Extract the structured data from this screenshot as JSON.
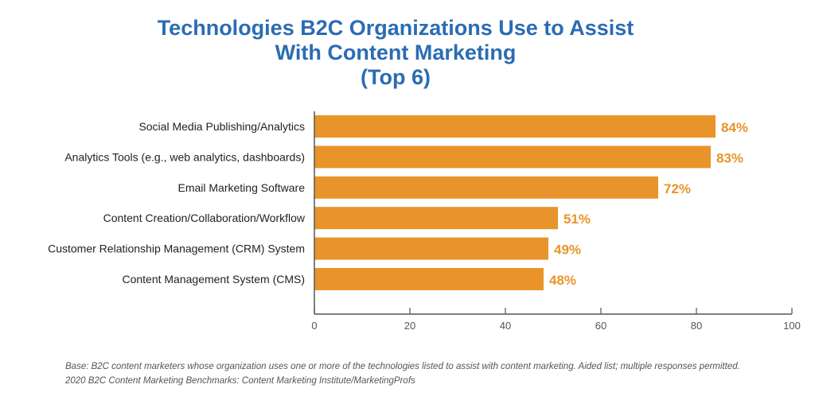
{
  "chart_data": {
    "type": "bar",
    "orientation": "horizontal",
    "title": [
      "Technologies B2C Organizations Use to Assist",
      "With Content Marketing",
      "(Top 6)"
    ],
    "categories": [
      "Social Media Publishing/Analytics",
      "Analytics Tools (e.g., web analytics, dashboards)",
      "Email Marketing Software",
      "Content Creation/Collaboration/Workflow",
      "Customer Relationship Management (CRM) System",
      "Content Management System (CMS)"
    ],
    "values": [
      84,
      83,
      72,
      51,
      49,
      48
    ],
    "data_labels": [
      "84%",
      "83%",
      "72%",
      "51%",
      "49%",
      "48%"
    ],
    "xlim": [
      0,
      100
    ],
    "xticks": [
      "0",
      "20",
      "40",
      "60",
      "80",
      "100"
    ],
    "grid": false,
    "bar_color": "#E8942A",
    "label_color": "#E8942A",
    "title_color": "#2B6CB3"
  },
  "footnotes": {
    "base": "Base: B2C content marketers whose organization uses one or more of the technologies listed to assist with content marketing. Aided list; multiple responses permitted.",
    "source": "2020 B2C Content Marketing Benchmarks: Content Marketing Institute/MarketingProfs"
  }
}
